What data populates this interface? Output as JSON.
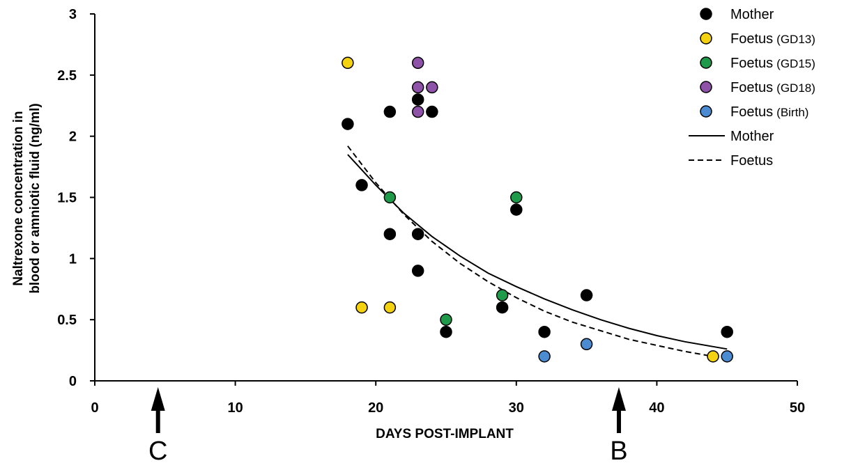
{
  "chart_data": {
    "type": "scatter",
    "title": "",
    "xlabel": "DAYS POST-IMPLANT",
    "ylabel_lines": [
      "Naltrexone concentration in",
      "blood or amniotic fluid (ng/ml)"
    ],
    "xlim": [
      0,
      50
    ],
    "ylim": [
      0,
      3
    ],
    "x_ticks": [
      "0",
      "10",
      "20",
      "30",
      "40",
      "50"
    ],
    "y_ticks": [
      "0",
      "0.5",
      "1",
      "1.5",
      "2",
      "2.5",
      "3"
    ],
    "grid": false,
    "legend_position": "top-right",
    "series": [
      {
        "name": "Mother",
        "color": "#000000",
        "points": [
          [
            18,
            2.1
          ],
          [
            19,
            1.6
          ],
          [
            21,
            2.2
          ],
          [
            21,
            1.2
          ],
          [
            23,
            2.3
          ],
          [
            23,
            1.2
          ],
          [
            23,
            0.9
          ],
          [
            24,
            2.2
          ],
          [
            25,
            0.4
          ],
          [
            29,
            0.6
          ],
          [
            30,
            1.4
          ],
          [
            32,
            0.4
          ],
          [
            35,
            0.7
          ],
          [
            45,
            0.4
          ]
        ]
      },
      {
        "name": "Foetus",
        "sub": "(GD13)",
        "color": "#f5d20f",
        "points": [
          [
            18,
            2.6
          ],
          [
            19,
            0.6
          ],
          [
            21,
            0.6
          ],
          [
            44,
            0.2
          ]
        ]
      },
      {
        "name": "Foetus",
        "sub": "(GD15)",
        "color": "#1f9a4a",
        "points": [
          [
            21,
            1.5
          ],
          [
            25,
            0.5
          ],
          [
            29,
            0.7
          ],
          [
            30,
            1.5
          ]
        ]
      },
      {
        "name": "Foetus",
        "sub": "(GD18)",
        "color": "#8e52a8",
        "points": [
          [
            23,
            2.6
          ],
          [
            23,
            2.4
          ],
          [
            23,
            2.2
          ],
          [
            24,
            2.4
          ]
        ]
      },
      {
        "name": "Foetus",
        "sub": "(Birth)",
        "color": "#4a8bd1",
        "points": [
          [
            32,
            0.2
          ],
          [
            35,
            0.3
          ],
          [
            45,
            0.2
          ]
        ]
      }
    ],
    "trendlines": [
      {
        "name": "Mother",
        "style": "solid",
        "points": [
          [
            18,
            1.85
          ],
          [
            20,
            1.6
          ],
          [
            22,
            1.37
          ],
          [
            24,
            1.18
          ],
          [
            26,
            1.02
          ],
          [
            28,
            0.88
          ],
          [
            30,
            0.77
          ],
          [
            32,
            0.67
          ],
          [
            34,
            0.58
          ],
          [
            36,
            0.5
          ],
          [
            38,
            0.43
          ],
          [
            40,
            0.37
          ],
          [
            42,
            0.32
          ],
          [
            44,
            0.28
          ],
          [
            45,
            0.26
          ]
        ]
      },
      {
        "name": "Foetus",
        "style": "dashed",
        "points": [
          [
            18,
            1.92
          ],
          [
            20,
            1.62
          ],
          [
            22,
            1.36
          ],
          [
            24,
            1.14
          ],
          [
            26,
            0.96
          ],
          [
            28,
            0.81
          ],
          [
            30,
            0.68
          ],
          [
            32,
            0.57
          ],
          [
            34,
            0.48
          ],
          [
            36,
            0.41
          ],
          [
            38,
            0.34
          ],
          [
            40,
            0.29
          ],
          [
            42,
            0.24
          ],
          [
            44,
            0.2
          ],
          [
            45,
            0.19
          ]
        ]
      }
    ],
    "annotations": [
      {
        "label": "C",
        "x": 4.5
      },
      {
        "label": "B",
        "x": 37.3
      }
    ]
  }
}
